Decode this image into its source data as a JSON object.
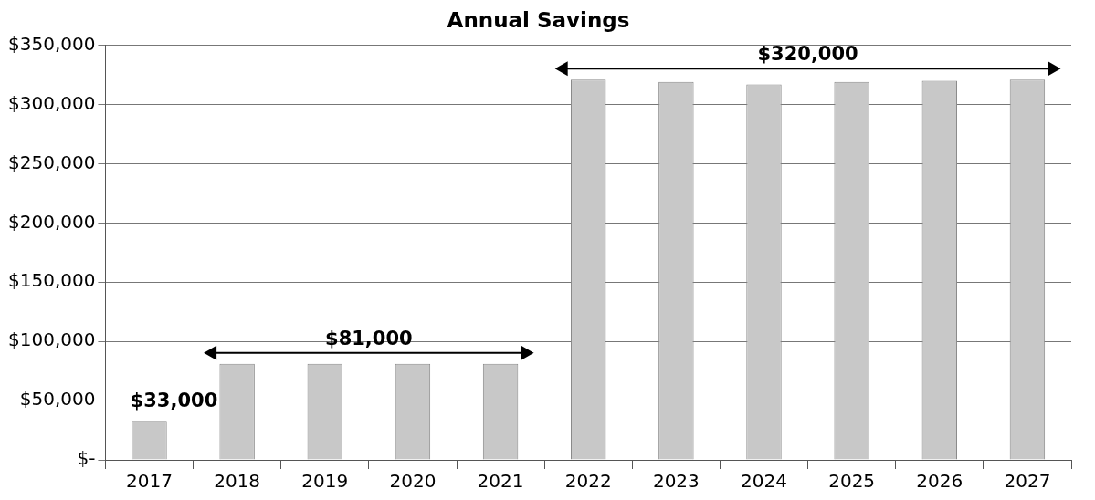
{
  "chart_data": {
    "type": "bar",
    "title": "Annual Savings",
    "categories": [
      "2017",
      "2018",
      "2019",
      "2020",
      "2021",
      "2022",
      "2023",
      "2024",
      "2025",
      "2026",
      "2027"
    ],
    "values": [
      33000,
      81000,
      81000,
      81000,
      81000,
      321000,
      319000,
      317000,
      319000,
      320000,
      321000
    ],
    "color": "#c8c8c8",
    "ylim": [
      0,
      350000
    ],
    "yticks": [
      {
        "value": 0,
        "label": "$-"
      },
      {
        "value": 50000,
        "label": "$50,000"
      },
      {
        "value": 100000,
        "label": "$100,000"
      },
      {
        "value": 150000,
        "label": "$150,000"
      },
      {
        "value": 200000,
        "label": "$200,000"
      },
      {
        "value": 250000,
        "label": "$250,000"
      },
      {
        "value": 300000,
        "label": "$300,000"
      },
      {
        "value": 350000,
        "label": "$350,000"
      }
    ],
    "grid": "y",
    "legend": false,
    "annotations": [
      {
        "text": "$33,000",
        "x": "2017",
        "y": 33000
      },
      "$81,000",
      "$320,000"
    ]
  }
}
